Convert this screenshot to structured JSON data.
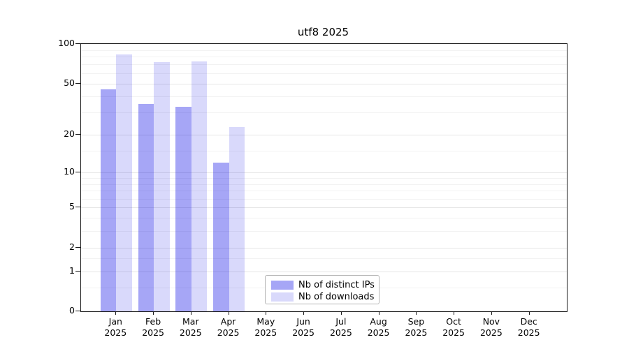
{
  "chart_data": {
    "type": "bar",
    "title": "utf8 2025",
    "x_categories": [
      "Jan",
      "Feb",
      "Mar",
      "Apr",
      "May",
      "Jun",
      "Jul",
      "Aug",
      "Sep",
      "Oct",
      "Nov",
      "Dec"
    ],
    "x_year": "2025",
    "series": [
      {
        "name": "Nb of distinct IPs",
        "color": "#0000e6",
        "alpha": 0.35,
        "values": [
          45,
          35,
          33,
          12,
          0,
          0,
          0,
          0,
          0,
          0,
          0,
          0
        ]
      },
      {
        "name": "Nb of downloads",
        "color": "#0000e6",
        "alpha": 0.15,
        "values": [
          83,
          73,
          74,
          23,
          0,
          0,
          0,
          0,
          0,
          0,
          0,
          0
        ]
      }
    ],
    "y_axis": {
      "scale": "log1p",
      "range": [
        0,
        100
      ],
      "ticks": [
        100,
        50,
        20,
        10,
        5,
        2,
        1,
        0
      ],
      "minor_gridlines": [
        0.5,
        1.5,
        3,
        4,
        6,
        7,
        8,
        9,
        15,
        30,
        40,
        60,
        70,
        80,
        90
      ]
    },
    "grid": true,
    "legend_position": "lower center",
    "colors": {
      "grid_major": "#e5e5e5",
      "grid_minor": "#f2f2f2",
      "axis": "#1a1a1a",
      "text": "#000000",
      "background": "#ffffff",
      "legend_border": "#b5b5b5"
    }
  }
}
